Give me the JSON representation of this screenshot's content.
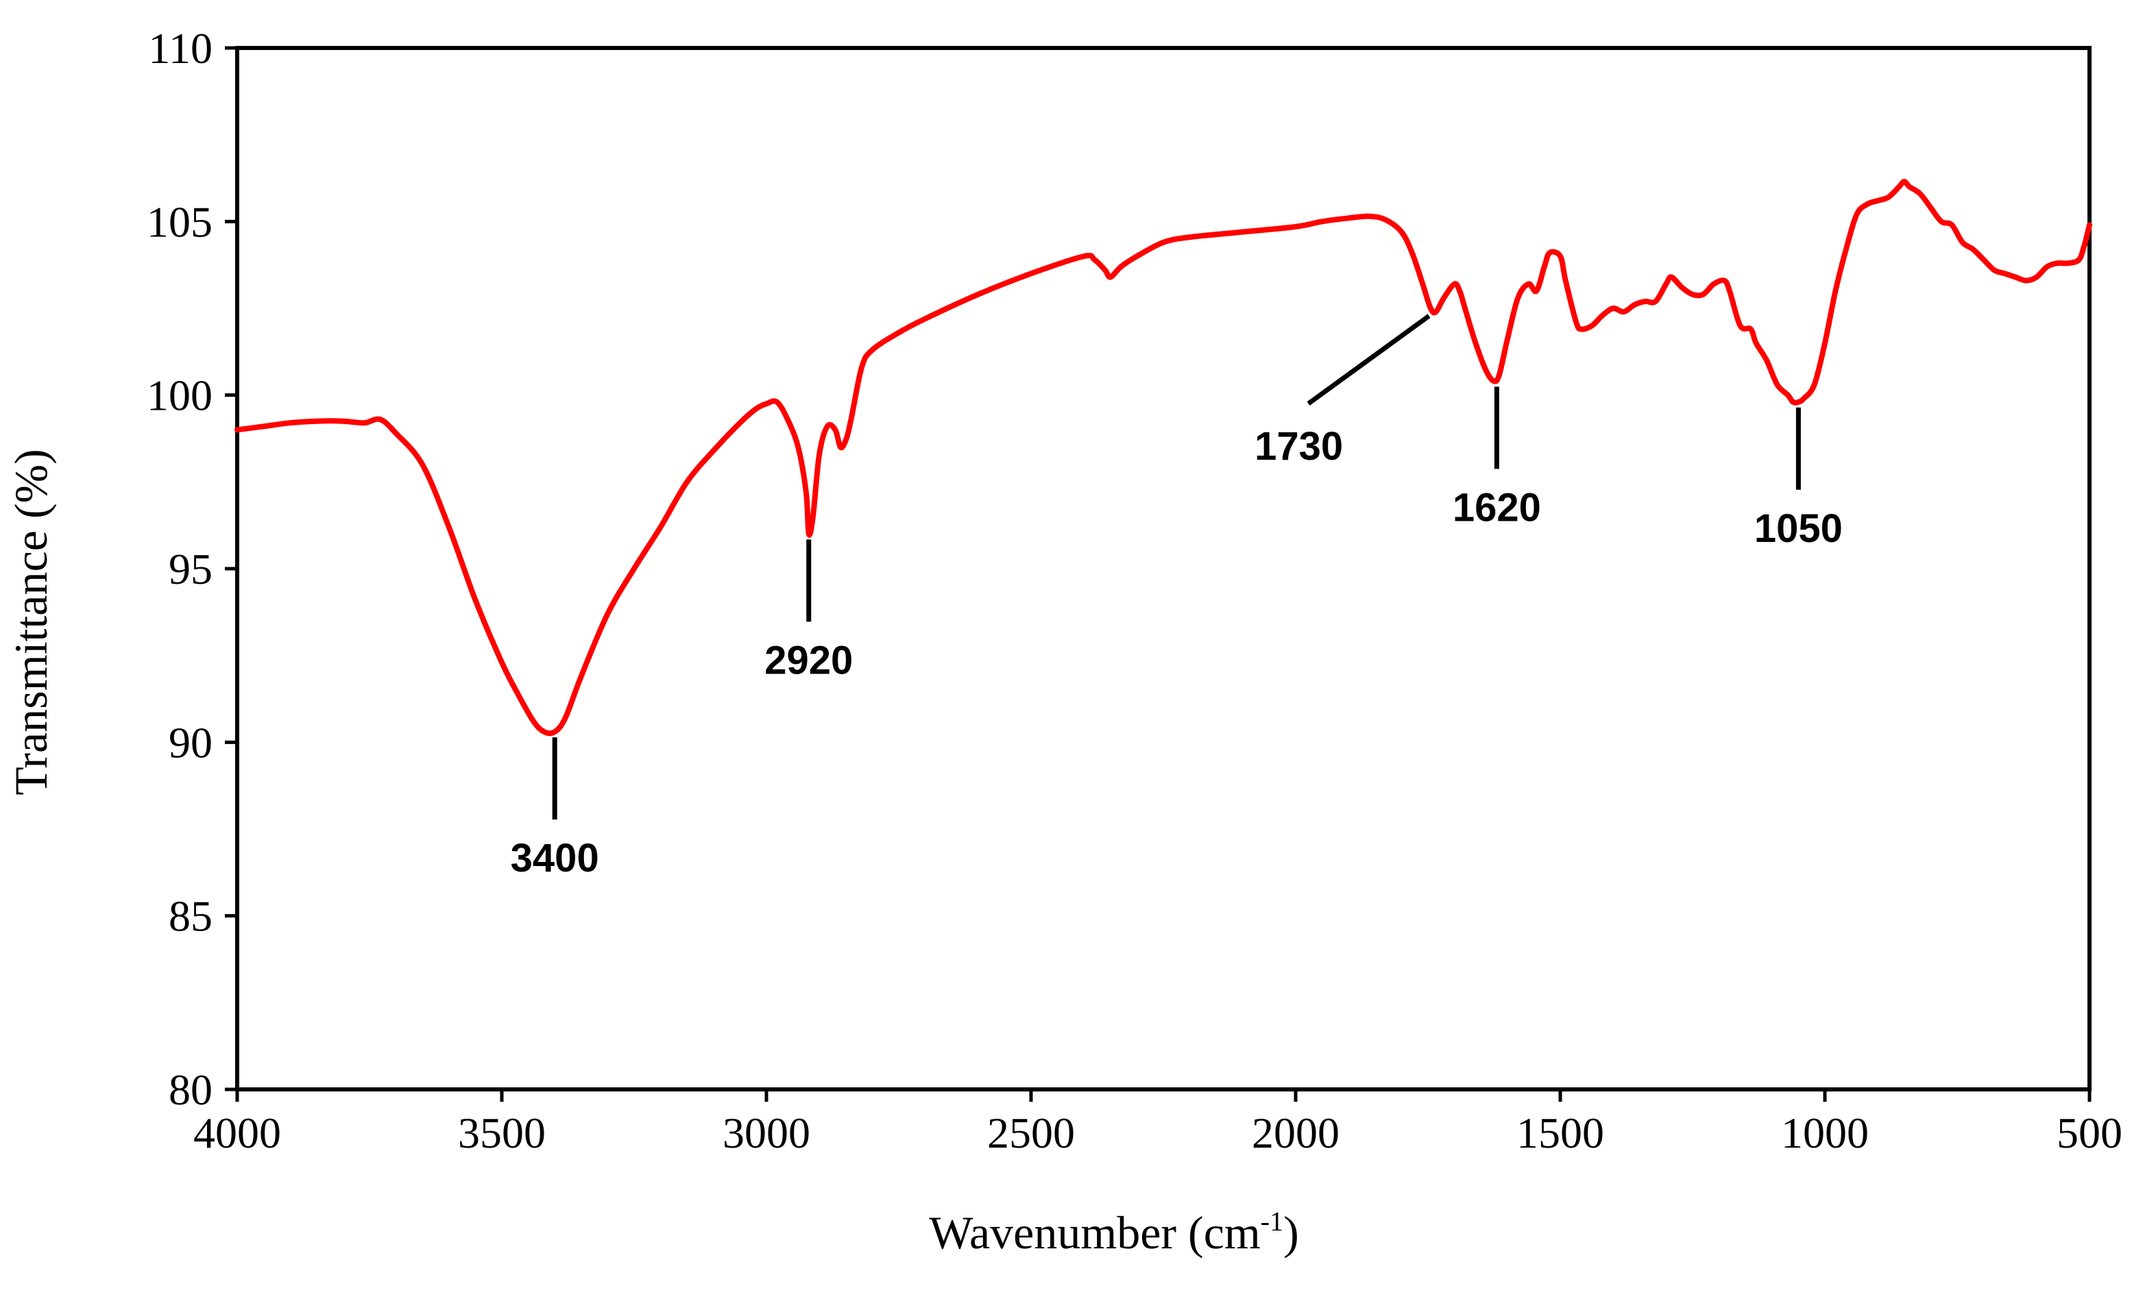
{
  "chart_data": {
    "type": "line",
    "title": "",
    "xlabel": "Wavenumber (cm",
    "xlabel_superscript": "-1",
    "xlabel_suffix": ")",
    "ylabel": "Transmittance (%)",
    "xlim": [
      4000,
      500
    ],
    "ylim": [
      80,
      110
    ],
    "grid": false,
    "line_color": "#ff0000",
    "x_ticks": [
      4000,
      3500,
      3000,
      2500,
      2000,
      1500,
      1000,
      500
    ],
    "x_tick_labels": [
      "4000",
      "3500",
      "3000",
      "2500",
      "2000",
      "1500",
      "1000",
      "500"
    ],
    "y_ticks": [
      80,
      85,
      90,
      95,
      100,
      105,
      110
    ],
    "y_tick_labels": [
      "80",
      "85",
      "90",
      "95",
      "100",
      "105",
      "110"
    ],
    "series": [
      {
        "name": "FTIR spectrum",
        "x": [
          4000,
          3950,
          3900,
          3850,
          3800,
          3760,
          3730,
          3700,
          3650,
          3600,
          3550,
          3500,
          3470,
          3440,
          3420,
          3400,
          3380,
          3350,
          3300,
          3250,
          3200,
          3150,
          3100,
          3050,
          3020,
          3000,
          2980,
          2960,
          2940,
          2925,
          2920,
          2912,
          2900,
          2885,
          2870,
          2860,
          2850,
          2840,
          2820,
          2800,
          2750,
          2700,
          2600,
          2500,
          2400,
          2380,
          2360,
          2350,
          2330,
          2300,
          2250,
          2200,
          2100,
          2000,
          1950,
          1900,
          1860,
          1830,
          1800,
          1780,
          1760,
          1745,
          1735,
          1720,
          1700,
          1690,
          1680,
          1660,
          1640,
          1625,
          1615,
          1600,
          1580,
          1560,
          1545,
          1530,
          1520,
          1500,
          1490,
          1470,
          1460,
          1440,
          1420,
          1400,
          1380,
          1360,
          1340,
          1320,
          1300,
          1290,
          1270,
          1250,
          1230,
          1210,
          1190,
          1180,
          1160,
          1140,
          1130,
          1110,
          1090,
          1070,
          1060,
          1050,
          1040,
          1020,
          1000,
          980,
          960,
          940,
          920,
          900,
          880,
          860,
          850,
          840,
          820,
          800,
          780,
          760,
          740,
          720,
          700,
          680,
          660,
          640,
          620,
          600,
          580,
          560,
          540,
          520,
          510,
          500
        ],
        "y": [
          99.0,
          99.1,
          99.2,
          99.25,
          99.25,
          99.2,
          99.3,
          98.9,
          98.0,
          96.2,
          94.1,
          92.3,
          91.4,
          90.6,
          90.3,
          90.3,
          90.7,
          91.9,
          93.7,
          95.0,
          96.2,
          97.5,
          98.4,
          99.2,
          99.6,
          99.75,
          99.8,
          99.3,
          98.5,
          97.2,
          96.0,
          96.5,
          98.3,
          99.1,
          99.0,
          98.5,
          98.7,
          99.3,
          100.8,
          101.3,
          101.8,
          102.2,
          102.9,
          103.5,
          104.0,
          103.9,
          103.6,
          103.4,
          103.7,
          104.0,
          104.4,
          104.55,
          104.7,
          104.85,
          105.0,
          105.1,
          105.15,
          105.05,
          104.7,
          104.1,
          103.2,
          102.5,
          102.4,
          102.8,
          103.2,
          103.0,
          102.5,
          101.5,
          100.7,
          100.4,
          100.6,
          101.6,
          102.8,
          103.2,
          103.0,
          103.7,
          104.1,
          104.0,
          103.3,
          102.1,
          101.9,
          102.0,
          102.3,
          102.5,
          102.4,
          102.6,
          102.7,
          102.7,
          103.2,
          103.4,
          103.1,
          102.9,
          102.9,
          103.2,
          103.3,
          103.0,
          102.0,
          101.9,
          101.5,
          101.0,
          100.3,
          100.0,
          99.8,
          99.8,
          99.9,
          100.3,
          101.5,
          103.0,
          104.2,
          105.2,
          105.5,
          105.6,
          105.7,
          106.0,
          106.15,
          106.0,
          105.8,
          105.4,
          105.0,
          104.9,
          104.4,
          104.2,
          103.9,
          103.6,
          103.5,
          103.4,
          103.3,
          103.4,
          103.7,
          103.8,
          103.8,
          103.9,
          104.3,
          104.9
        ]
      }
    ],
    "annotations": [
      {
        "text": "3400",
        "peak_x": 3400,
        "peak_y": 90.3,
        "leader": "vertical"
      },
      {
        "text": "2920",
        "peak_x": 2920,
        "peak_y": 96.0,
        "leader": "vertical"
      },
      {
        "text": "1730",
        "peak_x": 1735,
        "peak_y": 102.4,
        "leader": "diagonal"
      },
      {
        "text": "1620",
        "peak_x": 1620,
        "peak_y": 100.4,
        "leader": "vertical"
      },
      {
        "text": "1050",
        "peak_x": 1050,
        "peak_y": 99.8,
        "leader": "vertical"
      }
    ]
  }
}
